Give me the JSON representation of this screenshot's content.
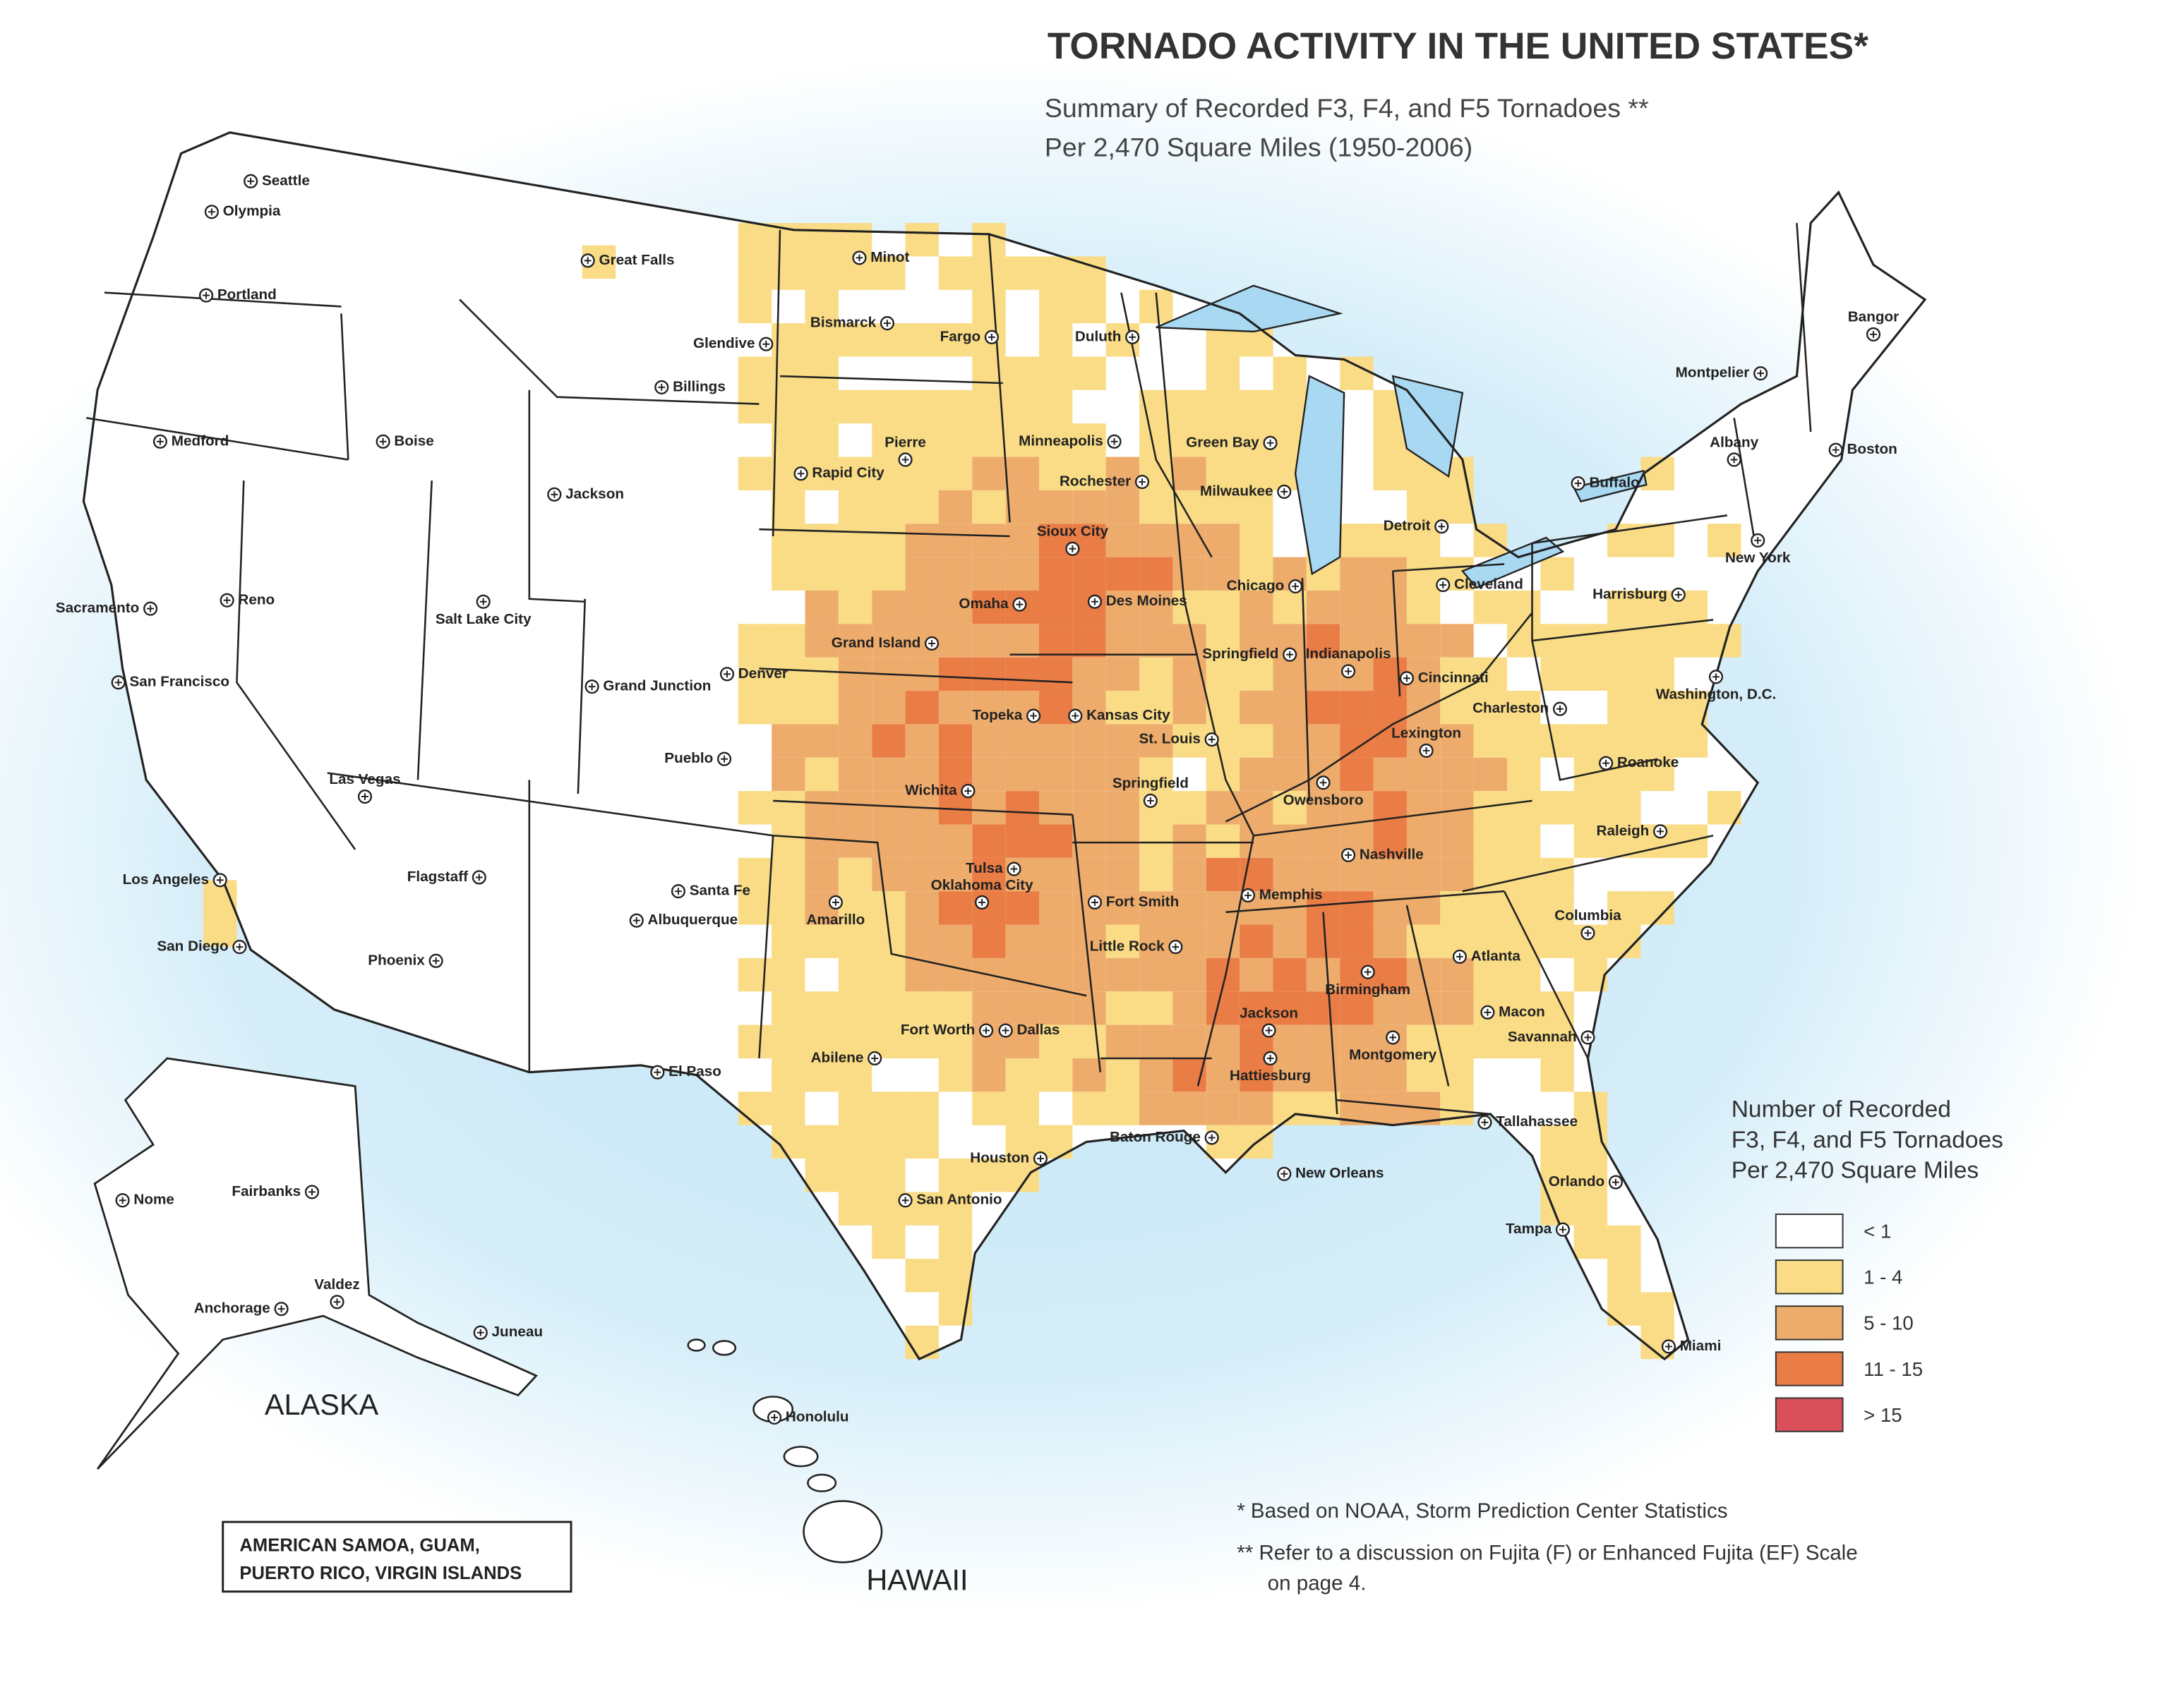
{
  "title": "TORNADO ACTIVITY IN THE UNITED STATES*",
  "subtitle": [
    "Summary of Recorded F3, F4, and F5 Tornadoes **",
    "Per 2,470 Square Miles (1950-2006)"
  ],
  "legend": {
    "title": [
      "Number of Recorded",
      "F3, F4, and F5 Tornadoes",
      "Per 2,470 Square Miles"
    ],
    "items": [
      {
        "label": "< 1",
        "color": "#ffffff"
      },
      {
        "label": "1 - 4",
        "color": "#f9dc85"
      },
      {
        "label": "5 - 10",
        "color": "#eeac6c"
      },
      {
        "label": "11 - 15",
        "color": "#ea7c45"
      },
      {
        "label": "> 15",
        "color": "#d9505a"
      }
    ]
  },
  "regions": [
    "ALASKA",
    "HAWAII"
  ],
  "territories": [
    "AMERICAN SAMOA, GUAM,",
    "PUERTO RICO, VIRGIN ISLANDS"
  ],
  "notes": [
    "* Based on NOAA, Storm Prediction Center Statistics",
    "** Refer to a discussion on Fujita (F) or Enhanced Fujita (EF) Scale",
    "on page 4."
  ],
  "cities": [
    "Seattle",
    "Olympia",
    "Portland",
    "Medford",
    "Boise",
    "Great Falls",
    "Glendive",
    "Billings",
    "Minot",
    "Bismarck",
    "Fargo",
    "Duluth",
    "Sacramento",
    "Reno",
    "San Francisco",
    "Salt Lake City",
    "Jackson",
    "Rapid City",
    "Pierre",
    "Minneapolis",
    "Rochester",
    "Green Bay",
    "Milwaukee",
    "Sioux City",
    "Omaha",
    "Des Moines",
    "Chicago",
    "Grand Island",
    "Denver",
    "Grand Junction",
    "Pueblo",
    "Topeka",
    "Kansas City",
    "St. Louis",
    "Springfield",
    "Indianapolis",
    "Cincinnati",
    "Wichita",
    "Springfield",
    "Las Vegas",
    "Los Angeles",
    "San Diego",
    "Flagstaff",
    "Phoenix",
    "Santa Fe",
    "Albuquerque",
    "Amarillo",
    "Tulsa",
    "Oklahoma City",
    "Fort Smith",
    "Little Rock",
    "Memphis",
    "Nashville",
    "Owensboro",
    "Lexington",
    "Charleston",
    "Roanoke",
    "Raleigh",
    "Columbia",
    "Atlanta",
    "Birmingham",
    "Macon",
    "Savannah",
    "Montgomery",
    "Jackson",
    "Hattiesburg",
    "Fort Worth",
    "Dallas",
    "Abilene",
    "El Paso",
    "Baton Rouge",
    "New Orleans",
    "Houston",
    "San Antonio",
    "Tallahassee",
    "Orlando",
    "Tampa",
    "Miami",
    "Detroit",
    "Cleveland",
    "Buffalo",
    "Albany",
    "Boston",
    "New York",
    "Harrisburg",
    "Washington, D.C.",
    "Montpelier",
    "Bangor",
    "Nome",
    "Fairbanks",
    "Anchorage",
    "Valdez",
    "Juneau",
    "Honolulu"
  ]
}
